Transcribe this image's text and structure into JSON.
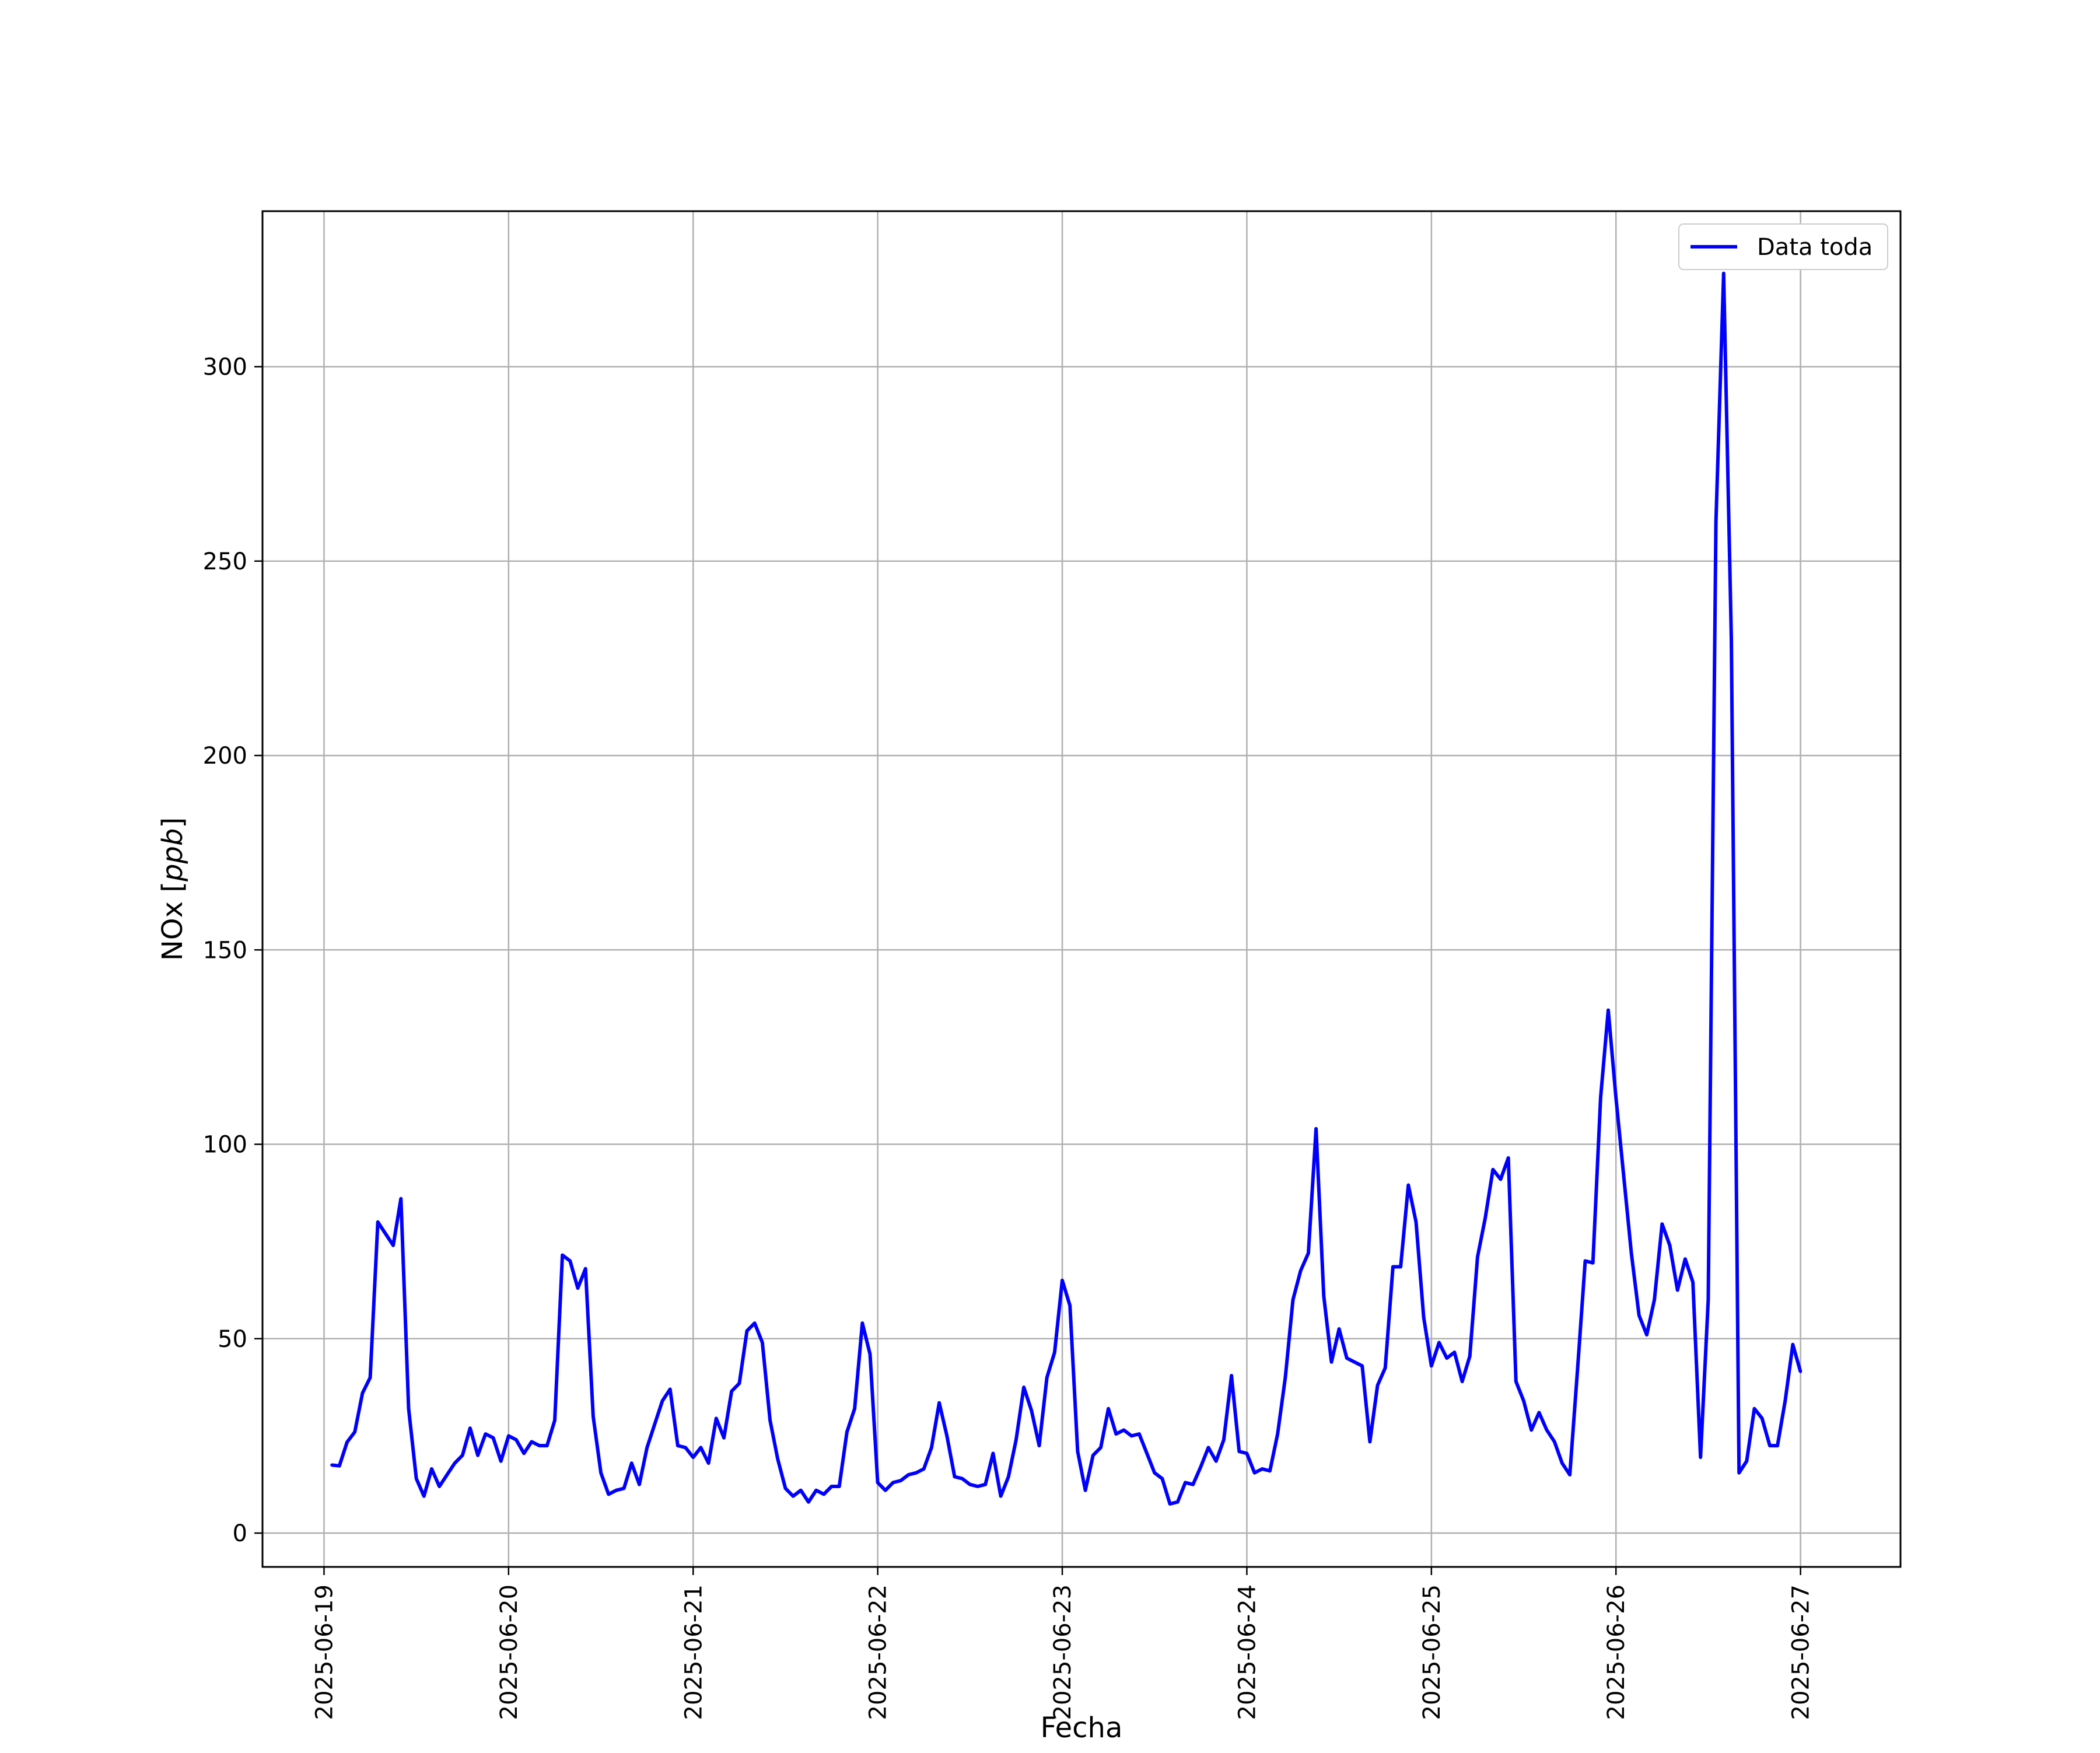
{
  "chart_data": {
    "type": "line",
    "xlabel": "Fecha",
    "ylabel": "NOx [ppb]",
    "ylabel_parts": {
      "plain": "NOx [",
      "italic": "ppb",
      "close": "]"
    },
    "x_tick_labels": [
      "2025-06-19",
      "2025-06-20",
      "2025-06-21",
      "2025-06-22",
      "2025-06-23",
      "2025-06-24",
      "2025-06-25",
      "2025-06-26",
      "2025-06-27"
    ],
    "y_tick_labels": [
      "0",
      "50",
      "100",
      "150",
      "200",
      "250",
      "300"
    ],
    "y_ticks": [
      0,
      50,
      100,
      150,
      200,
      250,
      300
    ],
    "xlim": [
      "2025-06-18 16:00",
      "2025-06-27 13:00"
    ],
    "ylim": [
      -8.7,
      340
    ],
    "grid": true,
    "legend_position": "top-right",
    "series": [
      {
        "name": "Data toda",
        "color": "#0000ff",
        "x_start": "2025-06-19 01:00",
        "x_step_hours": 1,
        "x_end": "2025-06-27 00:00",
        "values": [
          17.5,
          17.3,
          23.4,
          26.0,
          36.0,
          40.0,
          80.0,
          77.0,
          74.0,
          86.0,
          32.0,
          14.0,
          9.5,
          16.5,
          12.0,
          15.0,
          18.0,
          20.0,
          27.0,
          20.0,
          25.5,
          24.5,
          18.5,
          25.0,
          24.0,
          20.5,
          23.5,
          22.5,
          22.5,
          29.0,
          71.5,
          70.0,
          63.0,
          68.0,
          30.0,
          15.5,
          10.0,
          11.0,
          11.5,
          18.0,
          12.5,
          22.0,
          28.0,
          34.0,
          37.0,
          22.5,
          22.0,
          19.5,
          22.0,
          18.0,
          29.5,
          24.5,
          36.5,
          38.5,
          52.0,
          54.0,
          49.0,
          29.0,
          19.0,
          11.5,
          9.5,
          11.0,
          8.0,
          11.0,
          10.0,
          12.0,
          12.0,
          26.0,
          32.0,
          54.0,
          46.0,
          13.0,
          11.0,
          13.0,
          13.5,
          15.0,
          15.5,
          16.5,
          22.0,
          33.5,
          25.0,
          14.5,
          14.0,
          12.5,
          12.0,
          12.5,
          20.5,
          9.5,
          14.5,
          24.0,
          37.5,
          31.5,
          22.5,
          40.0,
          46.5,
          65.0,
          58.5,
          21.0,
          11.0,
          20.0,
          22.0,
          32.0,
          25.5,
          26.5,
          25.0,
          25.5,
          20.5,
          15.5,
          14.0,
          7.5,
          8.0,
          13.0,
          12.5,
          17.0,
          22.0,
          18.5,
          24.0,
          40.5,
          21.0,
          20.5,
          15.5,
          16.5,
          16.0,
          25.5,
          40.0,
          60.0,
          67.5,
          72.0,
          104.0,
          61.0,
          44.0,
          52.5,
          45.0,
          44.0,
          43.0,
          23.5,
          38.0,
          42.5,
          68.5,
          68.5,
          89.5,
          80.0,
          55.5,
          43.0,
          49.0,
          45.0,
          46.5,
          39.0,
          45.5,
          71.0,
          81.0,
          93.5,
          91.0,
          96.5,
          39.0,
          34.0,
          26.5,
          31.0,
          26.5,
          23.5,
          18.0,
          15.0,
          42.0,
          70.0,
          69.5,
          112.0,
          134.5,
          112.0,
          92.0,
          72.0,
          56.0,
          51.0,
          60.0,
          79.5,
          74.0,
          62.5,
          70.5,
          64.5,
          19.5,
          60.0,
          260.0,
          324.0,
          230.0,
          15.5,
          18.5,
          32.0,
          29.5,
          22.5,
          22.5,
          34.0,
          48.5,
          41.5
        ]
      }
    ]
  }
}
